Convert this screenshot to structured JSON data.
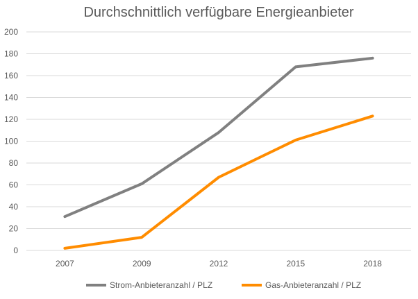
{
  "chart_data": {
    "type": "line",
    "title": "Durchschnittlich verfügbare Energieanbieter",
    "xlabel": "",
    "ylabel": "",
    "categories": [
      "2007",
      "2009",
      "2012",
      "2015",
      "2018"
    ],
    "ylim": [
      0,
      200
    ],
    "yticks": [
      0,
      20,
      40,
      60,
      80,
      100,
      120,
      140,
      160,
      180,
      200
    ],
    "grid": true,
    "legend_position": "bottom",
    "series": [
      {
        "name": "Strom-Anbieteranzahl / PLZ",
        "color": "#808080",
        "values": [
          31,
          61,
          108,
          168,
          176
        ]
      },
      {
        "name": "Gas-Anbieteranzahl / PLZ",
        "color": "#ff8c00",
        "values": [
          2,
          12,
          67,
          101,
          123
        ]
      }
    ]
  }
}
